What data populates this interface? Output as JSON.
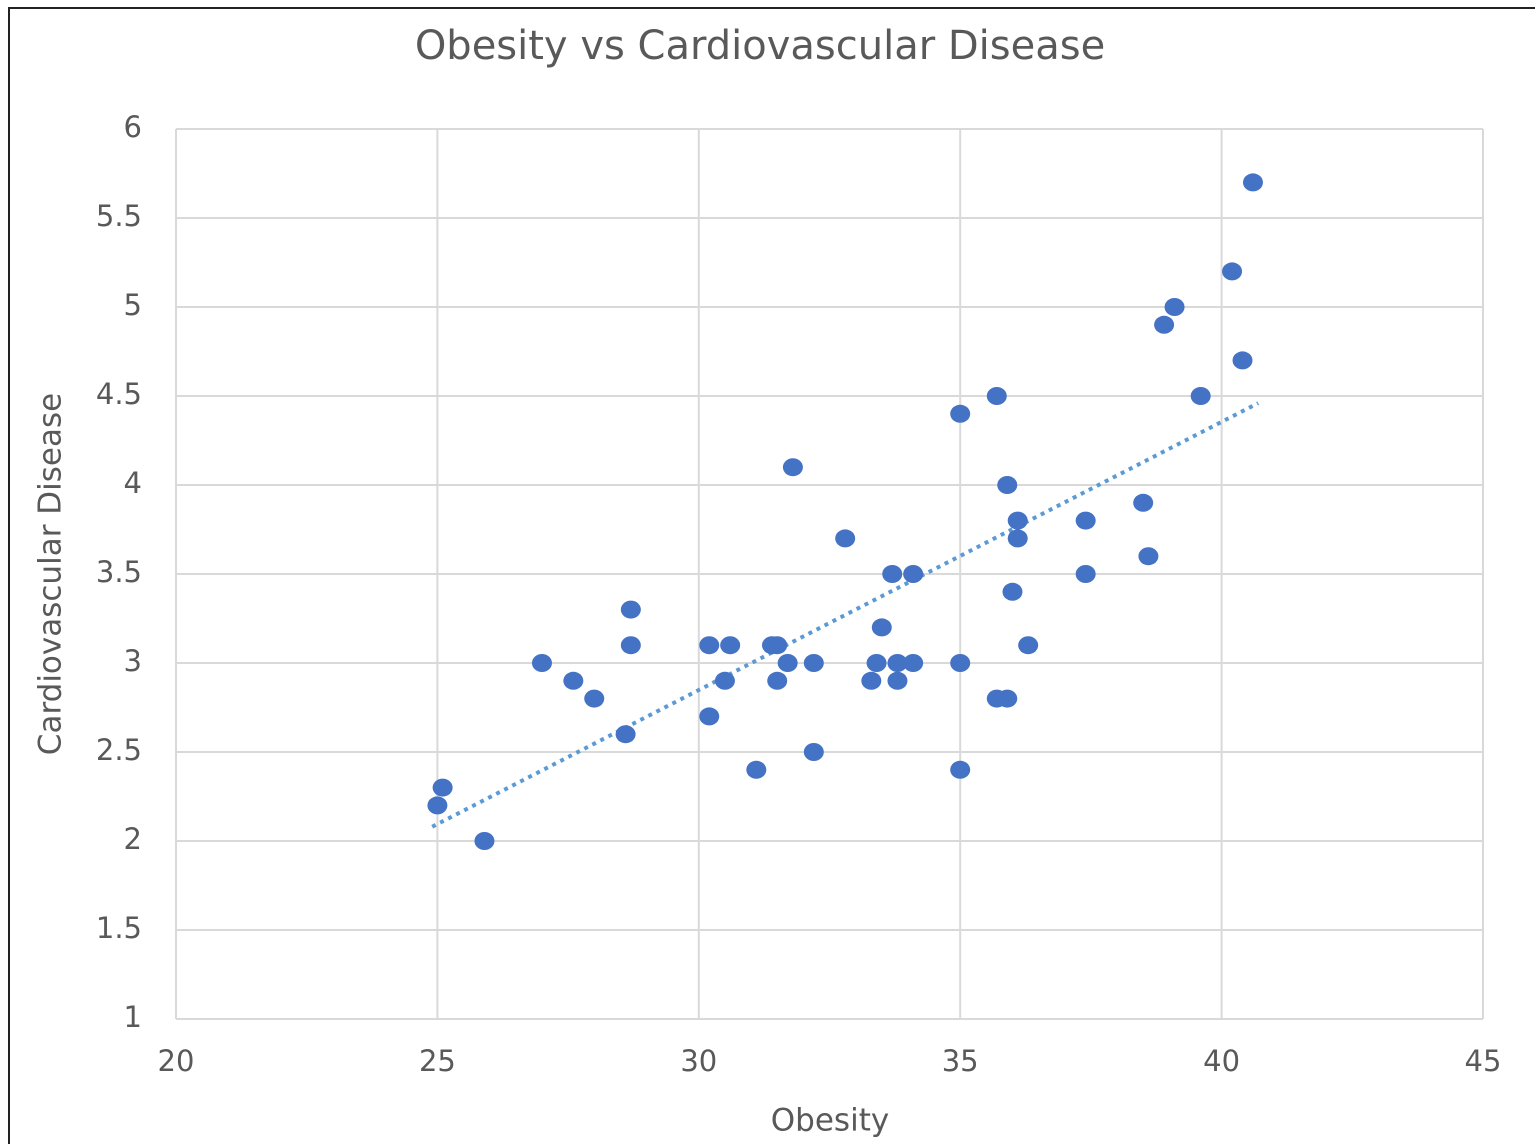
{
  "chart_data": {
    "type": "scatter",
    "title": "Obesity vs Cardiovascular Disease",
    "x_label": "Obesity",
    "y_label": "Cardiovascular Disease",
    "color": "#4472c4",
    "x": [
      25.0,
      25.1,
      25.9,
      27.0,
      27.6,
      28.0,
      28.7,
      28.7,
      28.6,
      30.2,
      30.6,
      30.5,
      30.2,
      31.1,
      31.4,
      31.5,
      31.7,
      31.5,
      31.8,
      32.2,
      32.2,
      32.8,
      33.3,
      33.4,
      33.5,
      33.7,
      33.8,
      33.8,
      34.1,
      34.1,
      35.0,
      35.0,
      35.0,
      35.7,
      35.9,
      35.7,
      35.9,
      36.0,
      36.1,
      36.1,
      36.3,
      37.4,
      37.4,
      38.5,
      38.6,
      38.9,
      39.1,
      39.6,
      40.2,
      40.4,
      40.6
    ],
    "values": [
      2.2,
      2.3,
      2.0,
      3.0,
      2.9,
      2.8,
      3.3,
      3.1,
      2.6,
      3.1,
      3.1,
      2.9,
      2.7,
      2.4,
      3.1,
      3.1,
      3.0,
      2.9,
      4.1,
      3.0,
      2.5,
      3.7,
      2.9,
      3.0,
      3.2,
      3.5,
      3.0,
      2.9,
      3.0,
      3.5,
      4.4,
      3.0,
      2.4,
      2.8,
      2.8,
      4.5,
      4.0,
      3.4,
      3.7,
      3.8,
      3.1,
      3.5,
      3.8,
      3.9,
      3.6,
      4.9,
      5.0,
      4.5,
      5.2,
      4.7,
      5.7
    ],
    "trendline": {
      "color": "#5b9bd5",
      "x": [
        24.9,
        40.7
      ],
      "y": [
        2.08,
        4.46
      ]
    },
    "xlim": [
      20,
      45
    ],
    "xticks": [
      20,
      25,
      30,
      35,
      40,
      45
    ],
    "ylim": [
      1,
      6
    ],
    "yticks": [
      1,
      1.5,
      2,
      2.5,
      3,
      3.5,
      4,
      4.5,
      5,
      5.5,
      6
    ],
    "grid": true
  }
}
